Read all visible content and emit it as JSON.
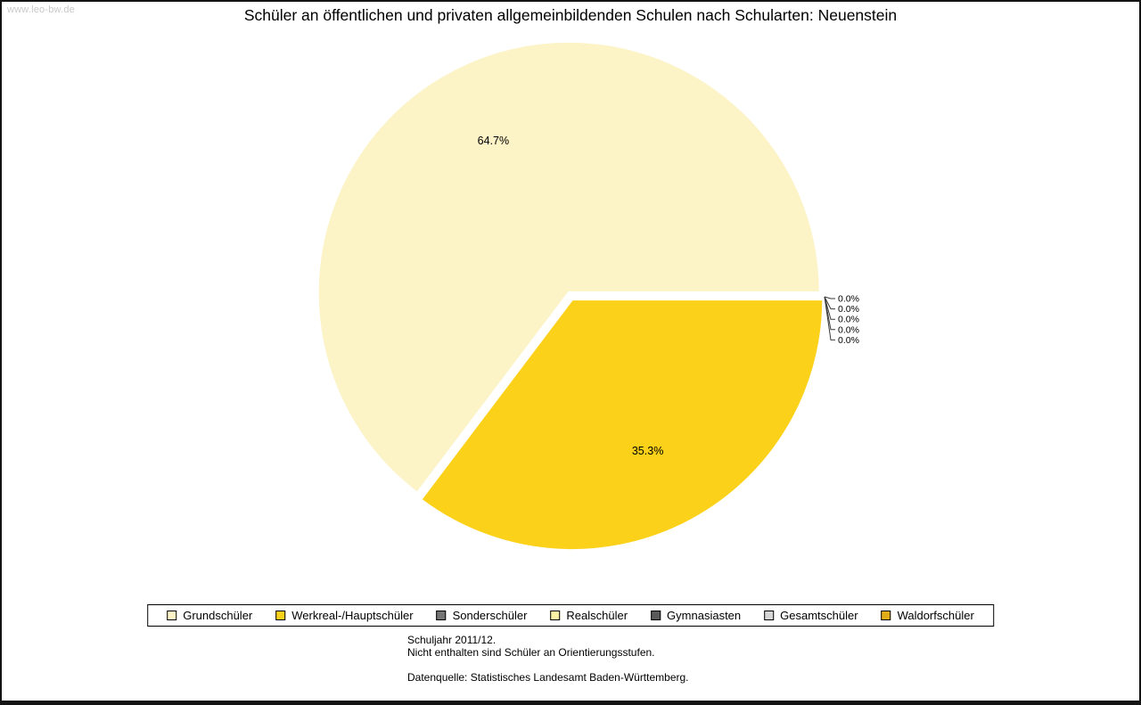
{
  "watermark": "www.leo-bw.de",
  "title": "Schüler an öffentlichen und privaten allgemeinbildenden Schulen nach Schularten: Neuenstein",
  "chart_data": {
    "type": "pie",
    "title": "Schüler an öffentlichen und privaten allgemeinbildenden Schulen nach Schularten: Neuenstein",
    "unit": "%",
    "start_angle_deg": 0,
    "direction": "counterclockwise",
    "legend_position": "bottom",
    "slices": [
      {
        "label": "Grundschüler",
        "value": 64.7,
        "display": "64.7%",
        "color": "#FCF3C6"
      },
      {
        "label": "Werkreal-/Hauptschüler",
        "value": 35.3,
        "display": "35.3%",
        "color": "#FCD11A"
      },
      {
        "label": "Sonderschüler",
        "value": 0.0,
        "display": "0.0%",
        "color": "#757575"
      },
      {
        "label": "Realschüler",
        "value": 0.0,
        "display": "0.0%",
        "color": "#FBF3A6"
      },
      {
        "label": "Gymnasiasten",
        "value": 0.0,
        "display": "0.0%",
        "color": "#5A5A5A"
      },
      {
        "label": "Gesamtschüler",
        "value": 0.0,
        "display": "0.0%",
        "color": "#D6D6D6"
      },
      {
        "label": "Waldorfschüler",
        "value": 0.0,
        "display": "0.0%",
        "color": "#E2AC18"
      }
    ]
  },
  "footnotes": {
    "line1": "Schuljahr 2011/12.",
    "line2": "Nicht enthalten sind Schüler an Orientierungsstufen.",
    "source": "Datenquelle: Statistisches Landesamt Baden-Württemberg."
  }
}
